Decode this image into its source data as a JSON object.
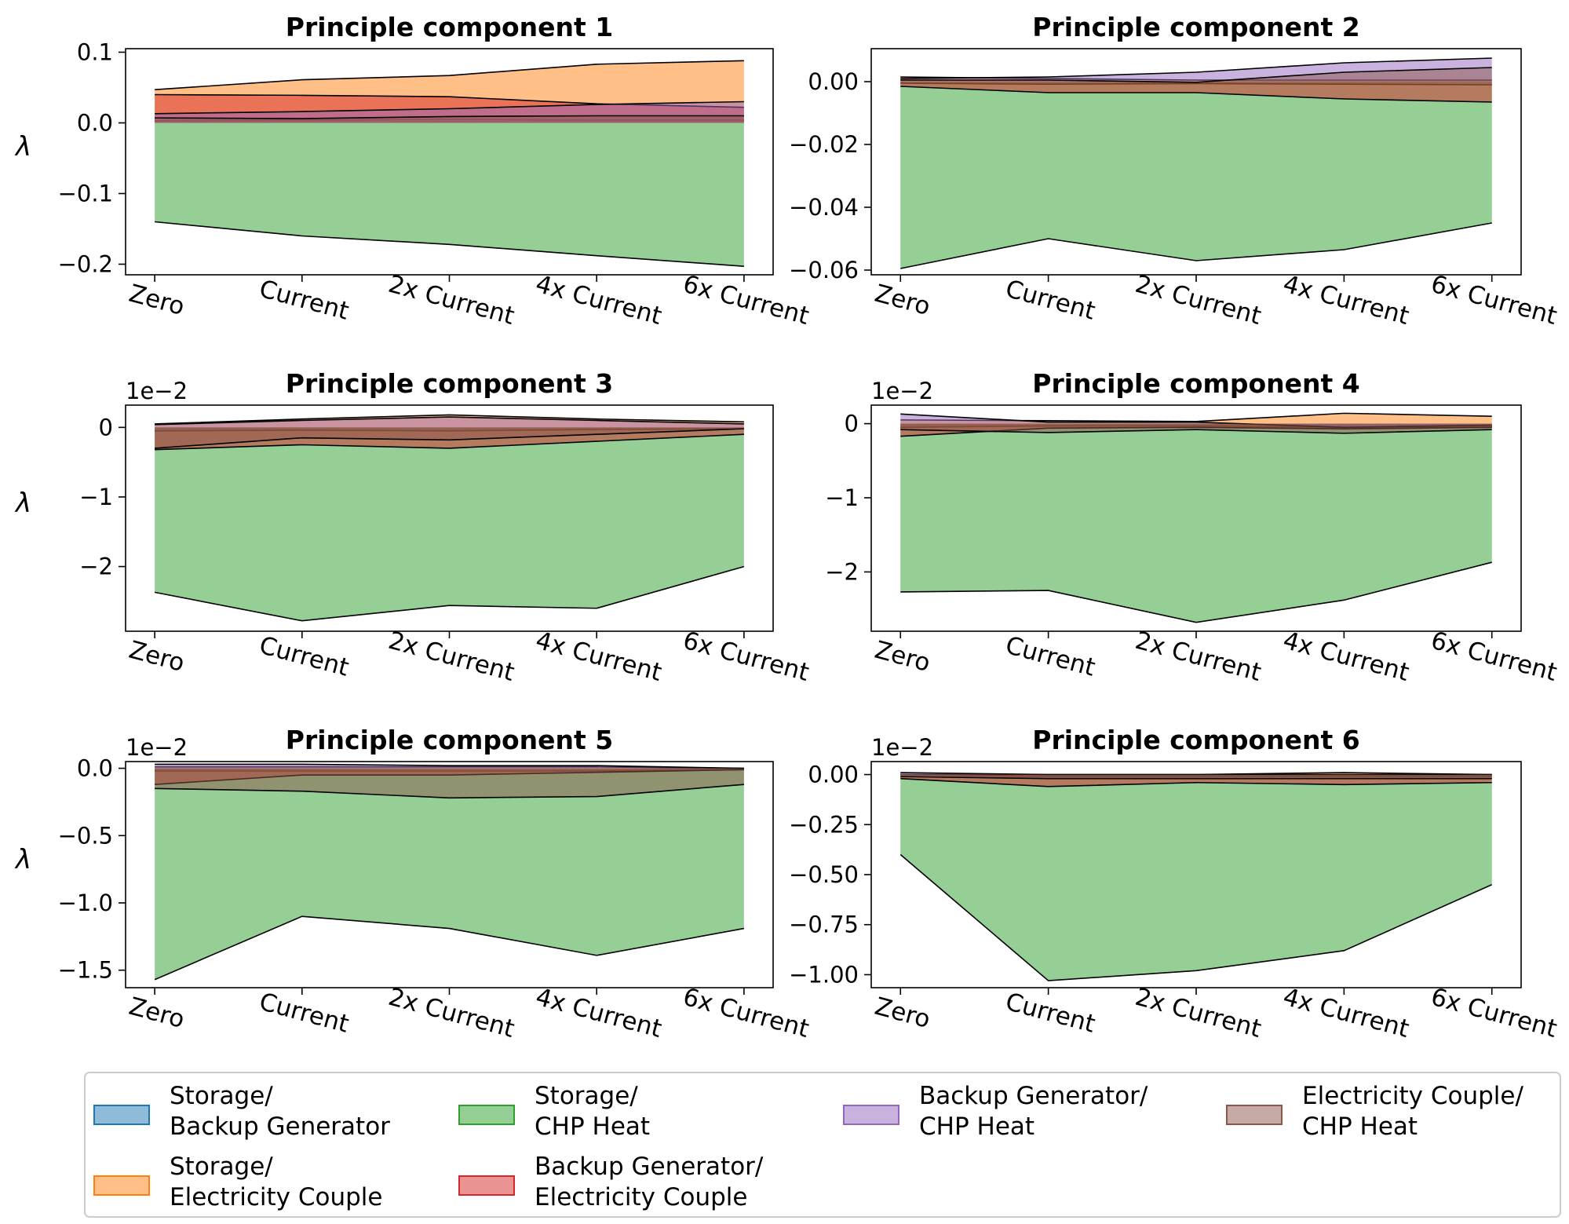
{
  "colors": {
    "Storage/Backup Generator": "#1f77b4",
    "Storage/CHP Heat": "#2ca02c",
    "Backup Generator/CHP Heat": "#9467bd",
    "Electricity Couple/CHP Heat": "#8c564b",
    "Storage/Electricity Couple": "#ff7f0e",
    "Backup Generator/Electricity Couple": "#d62728"
  },
  "legend": [
    {
      "series": "Storage/Backup Generator",
      "line1": "Storage/",
      "line2": "Backup Generator"
    },
    {
      "series": "Storage/CHP Heat",
      "line1": "Storage/",
      "line2": "CHP Heat"
    },
    {
      "series": "Backup Generator/CHP Heat",
      "line1": "Backup Generator/",
      "line2": "CHP Heat"
    },
    {
      "series": "Electricity Couple/CHP Heat",
      "line1": "Electricity Couple/",
      "line2": "CHP Heat"
    },
    {
      "series": "Storage/Electricity Couple",
      "line1": "Storage/",
      "line2": "Electricity Couple"
    },
    {
      "series": "Backup Generator/Electricity Couple",
      "line1": "Backup Generator/",
      "line2": "Electricity Couple"
    }
  ],
  "chart_data": [
    {
      "type": "area",
      "title": "Principle component 1",
      "ylabel": "λ",
      "offset_label": "",
      "categories": [
        "Zero",
        "Current",
        "2x Current",
        "4x Current",
        "6x Current"
      ],
      "ylim": [
        -0.215,
        0.105
      ],
      "yticks": [
        {
          "v": 0.1,
          "t": "0.1"
        },
        {
          "v": 0.0,
          "t": "0.0"
        },
        {
          "v": -0.1,
          "t": "−0.1"
        },
        {
          "v": -0.2,
          "t": "−0.2"
        }
      ],
      "series": [
        {
          "name": "Storage/Backup Generator",
          "values": [
            0.003,
            0.004,
            0.005,
            0.004,
            0.004
          ]
        },
        {
          "name": "Storage/Electricity Couple",
          "values": [
            0.047,
            0.061,
            0.067,
            0.083,
            0.088
          ]
        },
        {
          "name": "Storage/CHP Heat",
          "values": [
            -0.14,
            -0.16,
            -0.172,
            -0.188,
            -0.203
          ]
        },
        {
          "name": "Backup Generator/Electricity Couple",
          "values": [
            0.04,
            0.039,
            0.037,
            0.027,
            0.022
          ]
        },
        {
          "name": "Backup Generator/CHP Heat",
          "values": [
            0.013,
            0.016,
            0.02,
            0.026,
            0.03
          ]
        },
        {
          "name": "Electricity Couple/CHP Heat",
          "values": [
            0.007,
            0.006,
            0.009,
            0.01,
            0.01
          ]
        }
      ]
    },
    {
      "type": "area",
      "title": "Principle component 2",
      "ylabel": "",
      "offset_label": "",
      "categories": [
        "Zero",
        "Current",
        "2x Current",
        "4x Current",
        "6x Current"
      ],
      "ylim": [
        -0.0615,
        0.0105
      ],
      "yticks": [
        {
          "v": 0.0,
          "t": "0.00"
        },
        {
          "v": -0.02,
          "t": "−0.02"
        },
        {
          "v": -0.04,
          "t": "−0.04"
        },
        {
          "v": -0.06,
          "t": "−0.06"
        }
      ],
      "series": [
        {
          "name": "Storage/Backup Generator",
          "values": [
            -0.0005,
            -0.0008,
            -0.0006,
            -0.0008,
            -0.001
          ]
        },
        {
          "name": "Storage/Electricity Couple",
          "values": [
            0.0015,
            0.001,
            0.0005,
            0.0005,
            0.0005
          ]
        },
        {
          "name": "Storage/CHP Heat",
          "values": [
            -0.0595,
            -0.05,
            -0.057,
            -0.0535,
            -0.045
          ]
        },
        {
          "name": "Backup Generator/Electricity Couple",
          "values": [
            -0.0015,
            -0.0035,
            -0.0035,
            -0.0055,
            -0.0065
          ]
        },
        {
          "name": "Backup Generator/CHP Heat",
          "values": [
            0.001,
            0.0015,
            0.003,
            0.006,
            0.0075
          ]
        },
        {
          "name": "Electricity Couple/CHP Heat",
          "values": [
            0.0005,
            0.0005,
            -0.0002,
            0.003,
            0.0045
          ]
        }
      ]
    },
    {
      "type": "area",
      "title": "Principle component 3",
      "ylabel": "λ",
      "offset_label": "1e−2",
      "categories": [
        "Zero",
        "Current",
        "2x Current",
        "4x Current",
        "6x Current"
      ],
      "ylim": [
        -2.93,
        0.32
      ],
      "yticks": [
        {
          "v": 0,
          "t": "0"
        },
        {
          "v": -1,
          "t": "−1"
        },
        {
          "v": -2,
          "t": "−2"
        }
      ],
      "series": [
        {
          "name": "Storage/Backup Generator",
          "values": [
            -0.05,
            -0.04,
            -0.05,
            -0.03,
            -0.02
          ]
        },
        {
          "name": "Storage/Electricity Couple",
          "values": [
            0.05,
            0.12,
            0.18,
            0.12,
            0.08
          ]
        },
        {
          "name": "Storage/CHP Heat",
          "values": [
            -2.37,
            -2.78,
            -2.56,
            -2.6,
            -2.0
          ]
        },
        {
          "name": "Backup Generator/Electricity Couple",
          "values": [
            -0.32,
            -0.25,
            -0.3,
            -0.2,
            -0.1
          ]
        },
        {
          "name": "Backup Generator/CHP Heat",
          "values": [
            0.04,
            0.1,
            0.15,
            0.1,
            0.05
          ]
        },
        {
          "name": "Electricity Couple/CHP Heat",
          "values": [
            -0.3,
            -0.15,
            -0.18,
            -0.1,
            -0.02
          ]
        }
      ]
    },
    {
      "type": "area",
      "title": "Principle component 4",
      "ylabel": "",
      "offset_label": "1e−2",
      "categories": [
        "Zero",
        "Current",
        "2x Current",
        "4x Current",
        "6x Current"
      ],
      "ylim": [
        -2.8,
        0.25
      ],
      "yticks": [
        {
          "v": 0,
          "t": "0"
        },
        {
          "v": -1,
          "t": "−1"
        },
        {
          "v": -2,
          "t": "−2"
        }
      ],
      "series": [
        {
          "name": "Storage/Backup Generator",
          "values": [
            -0.05,
            -0.03,
            -0.03,
            -0.05,
            -0.04
          ]
        },
        {
          "name": "Storage/Electricity Couple",
          "values": [
            0.05,
            0.04,
            0.03,
            0.14,
            0.1
          ]
        },
        {
          "name": "Storage/CHP Heat",
          "values": [
            -2.27,
            -2.25,
            -2.68,
            -2.38,
            -1.87
          ]
        },
        {
          "name": "Backup Generator/Electricity Couple",
          "values": [
            -0.17,
            -0.06,
            -0.05,
            -0.07,
            -0.05
          ]
        },
        {
          "name": "Backup Generator/CHP Heat",
          "values": [
            0.13,
            0.02,
            0.02,
            -0.05,
            -0.02
          ]
        },
        {
          "name": "Electricity Couple/CHP Heat",
          "values": [
            -0.08,
            -0.12,
            -0.08,
            -0.13,
            -0.08
          ]
        }
      ]
    },
    {
      "type": "area",
      "title": "Principle component 5",
      "ylabel": "λ",
      "offset_label": "1e−2",
      "categories": [
        "Zero",
        "Current",
        "2x Current",
        "4x Current",
        "6x Current"
      ],
      "ylim": [
        -1.63,
        0.05
      ],
      "yticks": [
        {
          "v": 0.0,
          "t": "0.0"
        },
        {
          "v": -0.5,
          "t": "−0.5"
        },
        {
          "v": -1.0,
          "t": "−1.0"
        },
        {
          "v": -1.5,
          "t": "−1.5"
        }
      ],
      "series": [
        {
          "name": "Storage/Backup Generator",
          "values": [
            -0.02,
            -0.02,
            -0.02,
            -0.02,
            -0.01
          ]
        },
        {
          "name": "Storage/Electricity Couple",
          "values": [
            0.01,
            0.01,
            0.01,
            0.01,
            0.0
          ]
        },
        {
          "name": "Storage/CHP Heat",
          "values": [
            -1.57,
            -1.1,
            -1.19,
            -1.39,
            -1.19
          ]
        },
        {
          "name": "Backup Generator/Electricity Couple",
          "values": [
            -0.12,
            -0.05,
            -0.05,
            -0.03,
            -0.01
          ]
        },
        {
          "name": "Backup Generator/CHP Heat",
          "values": [
            0.03,
            0.03,
            0.02,
            0.02,
            0.0
          ]
        },
        {
          "name": "Electricity Couple/CHP Heat",
          "values": [
            -0.15,
            -0.17,
            -0.22,
            -0.21,
            -0.12
          ]
        }
      ]
    },
    {
      "type": "area",
      "title": "Principle component 6",
      "ylabel": "",
      "offset_label": "1e−2",
      "categories": [
        "Zero",
        "Current",
        "2x Current",
        "4x Current",
        "6x Current"
      ],
      "ylim": [
        -1.065,
        0.065
      ],
      "yticks": [
        {
          "v": 0.0,
          "t": "0.00"
        },
        {
          "v": -0.25,
          "t": "−0.25"
        },
        {
          "v": -0.5,
          "t": "−0.50"
        },
        {
          "v": -0.75,
          "t": "−0.75"
        },
        {
          "v": -1.0,
          "t": "−1.00"
        }
      ],
      "series": [
        {
          "name": "Storage/Backup Generator",
          "values": [
            0.0,
            -0.01,
            -0.01,
            -0.01,
            -0.01
          ]
        },
        {
          "name": "Storage/Electricity Couple",
          "values": [
            0.0,
            0.0,
            0.0,
            0.01,
            0.0
          ]
        },
        {
          "name": "Storage/CHP Heat",
          "values": [
            -0.4,
            -1.03,
            -0.98,
            -0.88,
            -0.55
          ]
        },
        {
          "name": "Backup Generator/Electricity Couple",
          "values": [
            -0.02,
            -0.06,
            -0.04,
            -0.05,
            -0.04
          ]
        },
        {
          "name": "Backup Generator/CHP Heat",
          "values": [
            0.01,
            0.0,
            0.0,
            0.0,
            0.0
          ]
        },
        {
          "name": "Electricity Couple/CHP Heat",
          "values": [
            -0.01,
            -0.02,
            -0.02,
            -0.02,
            -0.02
          ]
        }
      ]
    }
  ]
}
